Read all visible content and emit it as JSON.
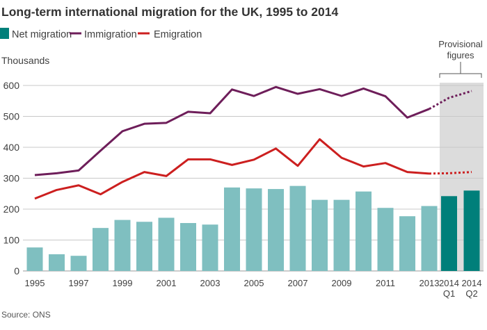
{
  "chart_data": {
    "type": "bar",
    "title": "Long-term international migration for the UK, 1995 to 2014",
    "ylabel": "Thousands",
    "ylim": [
      0,
      600
    ],
    "yticks": [
      0,
      100,
      200,
      300,
      400,
      500,
      600
    ],
    "grid": true,
    "legend_placement": "top-left",
    "categories": [
      "1995",
      "1996",
      "1997",
      "1998",
      "1999",
      "2000",
      "2001",
      "2002",
      "2003",
      "2004",
      "2005",
      "2006",
      "2007",
      "2008",
      "2009",
      "2010",
      "2011",
      "2012",
      "2013",
      "2014 Q1",
      "2014 Q2"
    ],
    "xtick_labels": [
      {
        "index": 0,
        "lines": [
          "1995"
        ]
      },
      {
        "index": 2,
        "lines": [
          "1997"
        ]
      },
      {
        "index": 4,
        "lines": [
          "1999"
        ]
      },
      {
        "index": 6,
        "lines": [
          "2001"
        ]
      },
      {
        "index": 8,
        "lines": [
          "2003"
        ]
      },
      {
        "index": 10,
        "lines": [
          "2005"
        ]
      },
      {
        "index": 12,
        "lines": [
          "2007"
        ]
      },
      {
        "index": 14,
        "lines": [
          "2009"
        ]
      },
      {
        "index": 16,
        "lines": [
          "2011"
        ]
      },
      {
        "index": 18,
        "lines": [
          "2013"
        ]
      },
      {
        "index": 19,
        "lines": [
          "2014",
          "Q1"
        ]
      },
      {
        "index": 20,
        "lines": [
          "2014",
          "Q2"
        ]
      }
    ],
    "series": [
      {
        "name": "Net migration",
        "kind": "bar",
        "color": "#7fbfc0",
        "provisional_color": "#007f7a",
        "values": [
          76,
          54,
          49,
          139,
          165,
          159,
          172,
          155,
          150,
          270,
          267,
          265,
          275,
          230,
          230,
          257,
          204,
          177,
          210,
          242,
          260
        ]
      },
      {
        "name": "Immigration",
        "kind": "line",
        "color": "#6e1e5a",
        "values": [
          310,
          316,
          325,
          389,
          452,
          476,
          479,
          515,
          510,
          587,
          566,
          595,
          573,
          588,
          566,
          590,
          565,
          496,
          524,
          560,
          582
        ]
      },
      {
        "name": "Emigration",
        "kind": "line",
        "color": "#cc1f1f",
        "values": [
          234,
          262,
          277,
          248,
          288,
          320,
          307,
          361,
          361,
          343,
          360,
          396,
          340,
          426,
          366,
          338,
          349,
          320,
          315,
          316,
          320
        ]
      }
    ],
    "provisional_label": "Provisional figures",
    "provisional_start_index": 19,
    "source": "Source: ONS"
  }
}
